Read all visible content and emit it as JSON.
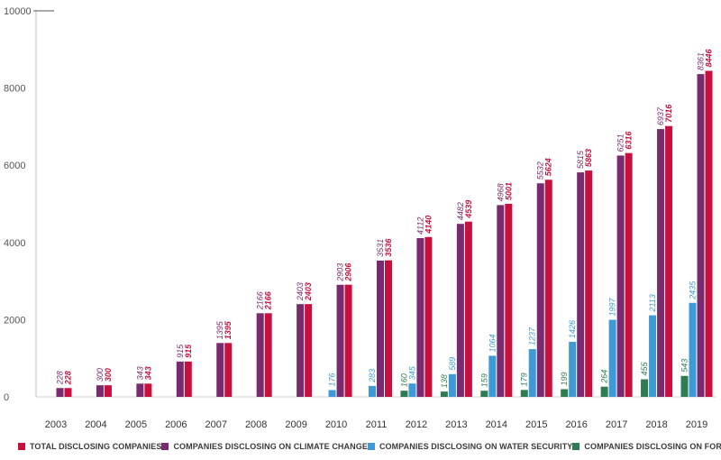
{
  "chart_data": {
    "type": "bar",
    "title": "",
    "xlabel": "",
    "ylabel": "",
    "ylim": [
      0,
      10000
    ],
    "yticks": [
      0,
      2000,
      4000,
      6000,
      8000,
      10000
    ],
    "grid": false,
    "legend_position": "bottom",
    "categories": [
      "2003",
      "2004",
      "2005",
      "2006",
      "2007",
      "2008",
      "2009",
      "2010",
      "2011",
      "2012",
      "2013",
      "2014",
      "2015",
      "2016",
      "2017",
      "2018",
      "2019"
    ],
    "series": [
      {
        "name": "COMPANIES DISCLOSING ON FORESTS",
        "color": "#2e7d52",
        "values": [
          null,
          null,
          null,
          null,
          null,
          null,
          null,
          null,
          null,
          160,
          138,
          159,
          179,
          199,
          264,
          455,
          543
        ]
      },
      {
        "name": "COMPANIES DISCLOSING ON WATER SECURITY",
        "color": "#3d9ad6",
        "values": [
          null,
          null,
          null,
          null,
          null,
          null,
          null,
          176,
          283,
          345,
          589,
          1064,
          1237,
          1426,
          1997,
          2113,
          2435
        ]
      },
      {
        "name": "COMPANIES DISCLOSING ON CLIMATE CHANGE",
        "color": "#7a2a6e",
        "values": [
          228,
          300,
          343,
          915,
          1395,
          2166,
          2403,
          2903,
          3531,
          4112,
          4482,
          4968,
          5532,
          5815,
          6251,
          6937,
          8361
        ]
      },
      {
        "name": "TOTAL DISCLOSING COMPANIES",
        "color": "#c8103e",
        "values": [
          228,
          300,
          343,
          915,
          1395,
          2166,
          2403,
          2906,
          3536,
          4140,
          4539,
          5001,
          5624,
          5863,
          6316,
          7016,
          8446
        ]
      }
    ]
  },
  "legend": [
    {
      "label": "TOTAL DISCLOSING COMPANIES",
      "color": "#c8103e"
    },
    {
      "label": "COMPANIES DISCLOSING ON CLIMATE CHANGE",
      "color": "#7a2a6e"
    },
    {
      "label": "COMPANIES DISCLOSING ON WATER SECURITY",
      "color": "#3d9ad6"
    },
    {
      "label": "COMPANIES DISCLOSING ON FORESTS",
      "color": "#2e7d52"
    }
  ]
}
